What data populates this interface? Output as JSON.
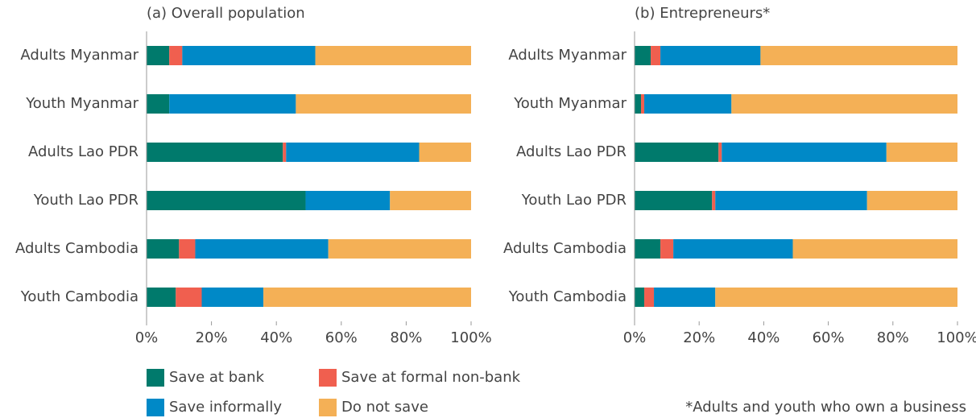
{
  "chart_data": [
    {
      "type": "bar",
      "orientation": "horizontal",
      "stacked": true,
      "title": "(a) Overall population",
      "categories": [
        "Adults Myanmar",
        "Youth Myanmar",
        "Adults Lao PDR",
        "Youth Lao PDR",
        "Adults Cambodia",
        "Youth Cambodia"
      ],
      "series": [
        {
          "name": "Save at bank",
          "color": "#007a6c",
          "values": [
            7,
            7,
            42,
            49,
            10,
            9
          ]
        },
        {
          "name": "Save at formal non-bank",
          "color": "#f05f4f",
          "values": [
            4,
            0,
            1,
            0,
            5,
            8
          ]
        },
        {
          "name": "Save informally",
          "color": "#0089c7",
          "values": [
            41,
            39,
            41,
            26,
            41,
            19
          ]
        },
        {
          "name": "Do not save",
          "color": "#f4b056",
          "values": [
            48,
            54,
            16,
            25,
            44,
            64
          ]
        }
      ],
      "xlim": [
        0,
        100
      ],
      "xticks": [
        {
          "value": 0,
          "label": "0%"
        },
        {
          "value": 20,
          "label": "20%"
        },
        {
          "value": 40,
          "label": "40%"
        },
        {
          "value": 60,
          "label": "60%"
        },
        {
          "value": 80,
          "label": "80%"
        },
        {
          "value": 100,
          "label": "100%"
        }
      ]
    },
    {
      "type": "bar",
      "orientation": "horizontal",
      "stacked": true,
      "title": "(b) Entrepreneurs*",
      "categories": [
        "Adults Myanmar",
        "Youth Myanmar",
        "Adults Lao PDR",
        "Youth Lao PDR",
        "Adults Cambodia",
        "Youth Cambodia"
      ],
      "series": [
        {
          "color": "#007a6c",
          "values": [
            5,
            2,
            26,
            24,
            8,
            3
          ]
        },
        {
          "color": "#f05f4f",
          "values": [
            3,
            1,
            1,
            1,
            4,
            3
          ]
        },
        {
          "color": "#0089c7",
          "values": [
            31,
            27,
            51,
            47,
            37,
            19
          ]
        },
        {
          "color": "#f4b056",
          "values": [
            61,
            70,
            22,
            28,
            51,
            75
          ]
        }
      ],
      "xlim": [
        0,
        100
      ],
      "xticks": [
        {
          "value": 0,
          "label": "0%"
        },
        {
          "value": 20,
          "label": "20%"
        },
        {
          "value": 40,
          "label": "40%"
        },
        {
          "value": 60,
          "label": "60%"
        },
        {
          "value": 80,
          "label": "80%"
        },
        {
          "value": 100,
          "label": "100%"
        }
      ],
      "note": "*Adults and youth who own a business"
    }
  ]
}
